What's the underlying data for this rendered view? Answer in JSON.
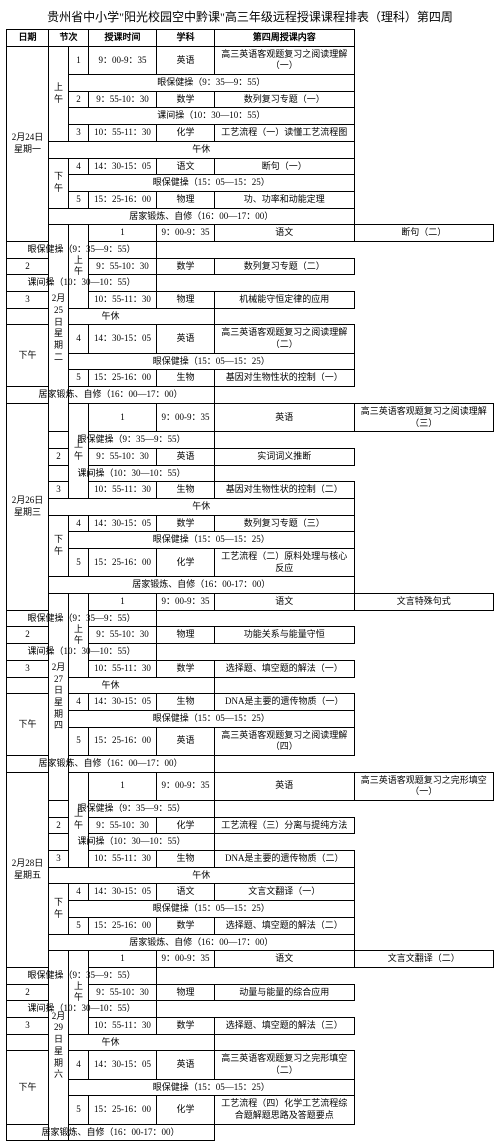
{
  "title": "贵州省中小学\"阳光校园空中黔课\"高三年级远程授课课程排表（理科）第四周",
  "hdr": {
    "date": "日期",
    "sess": "节次",
    "time": "授课时间",
    "subj": "学科",
    "content": "第四周授课内容"
  },
  "ampm": {
    "am": "上午",
    "pm": "下午"
  },
  "break": {
    "eye_am": "眼保健操（9：35—9：55）",
    "inter": "课间操（10：30—10：55）",
    "noon": "午休",
    "eye_pm": "眼保健操（15：05—15：25）",
    "home": "居家锻炼、自修（16：00—17：00）",
    "home2": "居家锻炼、自修（16：00-17：00）"
  },
  "days": [
    {
      "date": "2月24日\n星期一",
      "p1": {
        "n": "1",
        "t": "9：00-9：35",
        "s": "英语",
        "c": "高三英语客观题复习之阅读理解（一）"
      },
      "p2": {
        "n": "2",
        "t": "9：55-10：30",
        "s": "数学",
        "c": "数列复习专题（一）"
      },
      "p3": {
        "n": "3",
        "t": "10：55-11：30",
        "s": "化学",
        "c": "工艺流程（一）读懂工艺流程图"
      },
      "p4": {
        "n": "4",
        "t": "14：30-15：05",
        "s": "语文",
        "c": "断句（一）"
      },
      "p5": {
        "n": "5",
        "t": "15：25-16：00",
        "s": "物理",
        "c": "功、功率和动能定理"
      }
    },
    {
      "date": "2月25日\n星期二",
      "p1": {
        "n": "1",
        "t": "9：00-9：35",
        "s": "语文",
        "c": "断句（二）"
      },
      "p2": {
        "n": "2",
        "t": "9：55-10：30",
        "s": "数学",
        "c": "数列复习专题（二）"
      },
      "p3": {
        "n": "3",
        "t": "10：55-11：30",
        "s": "物理",
        "c": "机械能守恒定律的应用"
      },
      "p4": {
        "n": "4",
        "t": "14：30-15：05",
        "s": "英语",
        "c": "高三英语客观题复习之阅读理解（二）"
      },
      "p5": {
        "n": "5",
        "t": "15：25-16：00",
        "s": "生物",
        "c": "基因对生物性状的控制（一）"
      }
    },
    {
      "date": "2月26日\n星期三",
      "p1": {
        "n": "1",
        "t": "9：00-9：35",
        "s": "英语",
        "c": "高三英语客观题复习之阅读理解（三）"
      },
      "p2": {
        "n": "2",
        "t": "9：55-10：30",
        "s": "英语",
        "c": "实词词义推断"
      },
      "p3": {
        "n": "3",
        "t": "10：55-11：30",
        "s": "生物",
        "c": "基因对生物性状的控制（二）"
      },
      "p4": {
        "n": "4",
        "t": "14：30-15：05",
        "s": "数学",
        "c": "数列复习专题（三）"
      },
      "p5": {
        "n": "5",
        "t": "15：25-16：00",
        "s": "化学",
        "c": "工艺流程（二）原料处理与核心反应"
      }
    },
    {
      "date": "2月27日\n星期四",
      "p1": {
        "n": "1",
        "t": "9：00-9：35",
        "s": "语文",
        "c": "文言特殊句式"
      },
      "p2": {
        "n": "2",
        "t": "9：55-10：30",
        "s": "物理",
        "c": "功能关系与能量守恒"
      },
      "p3": {
        "n": "3",
        "t": "10：55-11：30",
        "s": "数学",
        "c": "选择题、填空题的解法（一）"
      },
      "p4": {
        "n": "4",
        "t": "14：30-15：05",
        "s": "生物",
        "c": "DNA是主要的遗传物质（一）"
      },
      "p5": {
        "n": "5",
        "t": "15：25-16：00",
        "s": "英语",
        "c": "高三英语客观题复习之阅读理解（四）"
      }
    },
    {
      "date": "2月28日\n星期五",
      "p1": {
        "n": "1",
        "t": "9：00-9：35",
        "s": "英语",
        "c": "高三英语客观题复习之完形填空（一）"
      },
      "p2": {
        "n": "2",
        "t": "9：55-10：30",
        "s": "化学",
        "c": "工艺流程（三）分离与提纯方法"
      },
      "p3": {
        "n": "3",
        "t": "10：55-11：30",
        "s": "生物",
        "c": "DNA是主要的遗传物质（二）"
      },
      "p4": {
        "n": "4",
        "t": "14：30-15：05",
        "s": "语文",
        "c": "文言文翻译（一）"
      },
      "p5": {
        "n": "5",
        "t": "15：25-16：00",
        "s": "数学",
        "c": "选择题、填空题的解法（二）"
      }
    },
    {
      "date": "2月29日\n星期六",
      "p1": {
        "n": "1",
        "t": "9：00-9：35",
        "s": "语文",
        "c": "文言文翻译（二）"
      },
      "p2": {
        "n": "2",
        "t": "9：55-10：30",
        "s": "物理",
        "c": "动量与能量的综合应用"
      },
      "p3": {
        "n": "3",
        "t": "10：55-11：30",
        "s": "数学",
        "c": "选择题、填空题的解法（三）"
      },
      "p4": {
        "n": "4",
        "t": "14：30-15：05",
        "s": "英语",
        "c": "高三英语客观题复习之完形填空（二）"
      },
      "p5": {
        "n": "5",
        "t": "15：25-16：00",
        "s": "化学",
        "c": "工艺流程（四）化学工艺流程综合题解题思路及答题要点"
      }
    }
  ]
}
